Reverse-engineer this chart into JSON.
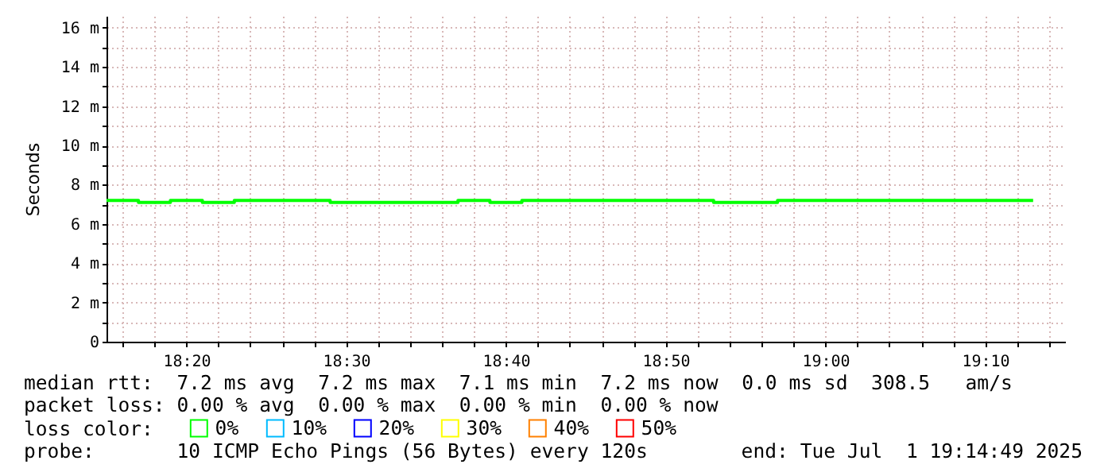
{
  "chart_data": {
    "type": "step",
    "ylabel": "Seconds",
    "legend_title": "loss color:",
    "legend": "bottom left",
    "grid": true,
    "line_style": "solid",
    "marker": "none",
    "x": [
      "2025-07-01T18:15",
      "2025-07-01T18:17",
      "2025-07-01T18:19",
      "2025-07-01T18:21",
      "2025-07-01T18:23",
      "2025-07-01T18:25",
      "2025-07-01T18:27",
      "2025-07-01T18:29",
      "2025-07-01T18:31",
      "2025-07-01T18:33",
      "2025-07-01T18:35",
      "2025-07-01T18:37",
      "2025-07-01T18:39",
      "2025-07-01T18:41",
      "2025-07-01T18:43",
      "2025-07-01T18:45",
      "2025-07-01T18:47",
      "2025-07-01T18:49",
      "2025-07-01T18:51",
      "2025-07-01T18:53",
      "2025-07-01T18:55",
      "2025-07-01T18:57",
      "2025-07-01T18:59",
      "2025-07-01T19:01",
      "2025-07-01T19:03",
      "2025-07-01T19:05",
      "2025-07-01T19:07",
      "2025-07-01T19:09",
      "2025-07-01T19:11",
      "2025-07-01T19:13"
    ],
    "series": [
      {
        "name": "0%",
        "color": "#00ff00",
        "values": [
          7.2,
          7.1,
          7.2,
          7.1,
          7.2,
          7.2,
          7.2,
          7.1,
          7.1,
          7.1,
          7.1,
          7.2,
          7.1,
          7.2,
          7.2,
          7.2,
          7.2,
          7.2,
          7.2,
          7.1,
          7.1,
          7.2,
          7.2,
          7.2,
          7.2,
          7.2,
          7.2,
          7.2,
          7.2,
          7.2
        ]
      },
      {
        "name": "10%",
        "color": "#00bbff",
        "values": [
          null,
          null,
          null,
          null,
          null,
          null,
          null,
          null,
          null,
          null,
          null,
          null,
          null,
          null,
          null,
          null,
          null,
          null,
          null,
          null,
          null,
          null,
          null,
          null,
          null,
          null,
          null,
          null,
          null,
          null
        ]
      },
      {
        "name": "20%",
        "color": "#0000ff",
        "values": [
          null,
          null,
          null,
          null,
          null,
          null,
          null,
          null,
          null,
          null,
          null,
          null,
          null,
          null,
          null,
          null,
          null,
          null,
          null,
          null,
          null,
          null,
          null,
          null,
          null,
          null,
          null,
          null,
          null,
          null
        ]
      },
      {
        "name": "30%",
        "color": "#ffff00",
        "values": [
          null,
          null,
          null,
          null,
          null,
          null,
          null,
          null,
          null,
          null,
          null,
          null,
          null,
          null,
          null,
          null,
          null,
          null,
          null,
          null,
          null,
          null,
          null,
          null,
          null,
          null,
          null,
          null,
          null,
          null
        ]
      },
      {
        "name": "40%",
        "color": "#ff8000",
        "values": [
          null,
          null,
          null,
          null,
          null,
          null,
          null,
          null,
          null,
          null,
          null,
          null,
          null,
          null,
          null,
          null,
          null,
          null,
          null,
          null,
          null,
          null,
          null,
          null,
          null,
          null,
          null,
          null,
          null,
          null
        ]
      },
      {
        "name": "50%",
        "color": "#ff0000",
        "values": [
          null,
          null,
          null,
          null,
          null,
          null,
          null,
          null,
          null,
          null,
          null,
          null,
          null,
          null,
          null,
          null,
          null,
          null,
          null,
          null,
          null,
          null,
          null,
          null,
          null,
          null,
          null,
          null,
          null,
          null
        ]
      }
    ],
    "xlim": [
      "2025-07-01T18:15",
      "2025-07-01T19:15"
    ],
    "xticks": [
      {
        "value": "2025-07-01T18:16",
        "label": null
      },
      {
        "value": "2025-07-01T18:18",
        "label": null
      },
      {
        "value": "2025-07-01T18:20",
        "label": "18:20"
      },
      {
        "value": "2025-07-01T18:22",
        "label": null
      },
      {
        "value": "2025-07-01T18:24",
        "label": null
      },
      {
        "value": "2025-07-01T18:26",
        "label": null
      },
      {
        "value": "2025-07-01T18:28",
        "label": null
      },
      {
        "value": "2025-07-01T18:30",
        "label": "18:30"
      },
      {
        "value": "2025-07-01T18:32",
        "label": null
      },
      {
        "value": "2025-07-01T18:34",
        "label": null
      },
      {
        "value": "2025-07-01T18:36",
        "label": null
      },
      {
        "value": "2025-07-01T18:38",
        "label": null
      },
      {
        "value": "2025-07-01T18:40",
        "label": "18:40"
      },
      {
        "value": "2025-07-01T18:42",
        "label": null
      },
      {
        "value": "2025-07-01T18:44",
        "label": null
      },
      {
        "value": "2025-07-01T18:46",
        "label": null
      },
      {
        "value": "2025-07-01T18:48",
        "label": null
      },
      {
        "value": "2025-07-01T18:50",
        "label": "18:50"
      },
      {
        "value": "2025-07-01T18:52",
        "label": null
      },
      {
        "value": "2025-07-01T18:54",
        "label": null
      },
      {
        "value": "2025-07-01T18:56",
        "label": null
      },
      {
        "value": "2025-07-01T18:58",
        "label": null
      },
      {
        "value": "2025-07-01T19:00",
        "label": "19:00"
      },
      {
        "value": "2025-07-01T19:02",
        "label": null
      },
      {
        "value": "2025-07-01T19:04",
        "label": null
      },
      {
        "value": "2025-07-01T19:06",
        "label": null
      },
      {
        "value": "2025-07-01T19:08",
        "label": null
      },
      {
        "value": "2025-07-01T19:10",
        "label": "19:10"
      },
      {
        "value": "2025-07-01T19:12",
        "label": null
      },
      {
        "value": "2025-07-01T19:14",
        "label": null
      }
    ],
    "ylim": [
      0,
      16.6
    ],
    "yticks": [
      0,
      {
        "value": 1,
        "label": null
      },
      {
        "value": 2,
        "label": "2 m"
      },
      {
        "value": 3,
        "label": null
      },
      {
        "value": 4,
        "label": "4 m"
      },
      {
        "value": 5,
        "label": null
      },
      {
        "value": 6,
        "label": "6 m"
      },
      {
        "value": 7,
        "label": null
      },
      {
        "value": 8,
        "label": "8 m"
      },
      {
        "value": 9,
        "label": null
      },
      {
        "value": 10,
        "label": "10 m"
      },
      {
        "value": 11,
        "label": null
      },
      {
        "value": 12,
        "label": "12 m"
      },
      {
        "value": 13,
        "label": null
      },
      {
        "value": 14,
        "label": "14 m"
      },
      {
        "value": 15,
        "label": null
      },
      {
        "value": 16,
        "label": "16 m"
      }
    ],
    "annotations": [
      "median rtt:  7.2 ms avg  7.2 ms max  7.1 ms min  7.2 ms now  0.0 ms sd  308.5   am/s",
      "packet loss: 0.00 % avg  0.00 % max  0.00 % min  0.00 % now",
      "probe:       10 ICMP Echo Pings (56 Bytes) every 120s",
      "end: Tue Jul  1 19:14:49 2025"
    ]
  }
}
